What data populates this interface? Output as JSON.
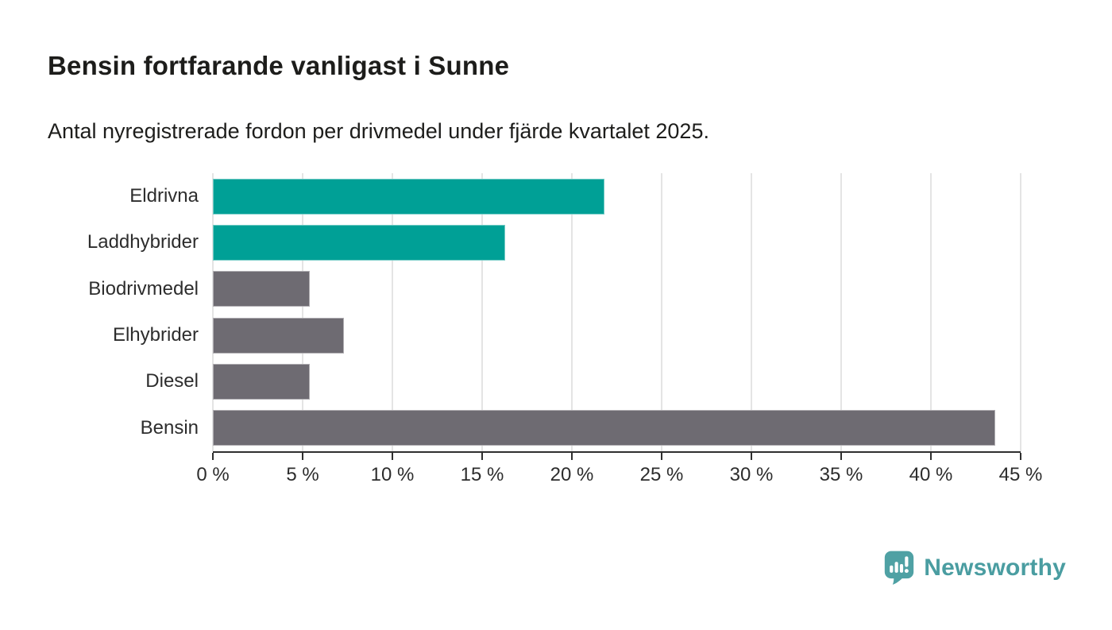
{
  "header": {
    "title": "Bensin fortfarande vanligast i Sunne",
    "subtitle": "Antal nyregistrerade fordon per drivmedel under fjärde kvartalet 2025."
  },
  "chart_data": {
    "type": "bar",
    "orientation": "horizontal",
    "title": "Bensin fortfarande vanligast i Sunne",
    "subtitle": "Antal nyregistrerade fordon per drivmedel under fjärde kvartalet 2025.",
    "categories": [
      "Eldrivna",
      "Laddhybrider",
      "Biodrivmedel",
      "Elhybrider",
      "Diesel",
      "Bensin"
    ],
    "values": [
      21.8,
      16.3,
      5.4,
      7.3,
      5.4,
      43.6
    ],
    "unit": "%",
    "bar_colors": [
      "#00a096",
      "#00a096",
      "#6e6b72",
      "#6e6b72",
      "#6e6b72",
      "#6e6b72"
    ],
    "xlabel": "",
    "ylabel": "",
    "xlim": [
      0,
      45
    ],
    "x_ticks": [
      0,
      5,
      10,
      15,
      20,
      25,
      30,
      35,
      40,
      45
    ],
    "x_tick_labels": [
      "0 %",
      "5 %",
      "10 %",
      "15 %",
      "20 %",
      "25 %",
      "30 %",
      "35 %",
      "40 %",
      "45 %"
    ],
    "grid": "vertical-gridlines-on",
    "legend": "none"
  },
  "colors": {
    "accent_teal": "#00a096",
    "bar_gray": "#6e6b72",
    "gridline": "#e4e4e4",
    "axis": "#2f2f2f",
    "text": "#1d1d1b",
    "brand_teal": "#4a9da1"
  },
  "branding": {
    "logo_text": "Newsworthy",
    "logo_icon": "speech-bubble-bar-chart-exclamation-icon"
  }
}
